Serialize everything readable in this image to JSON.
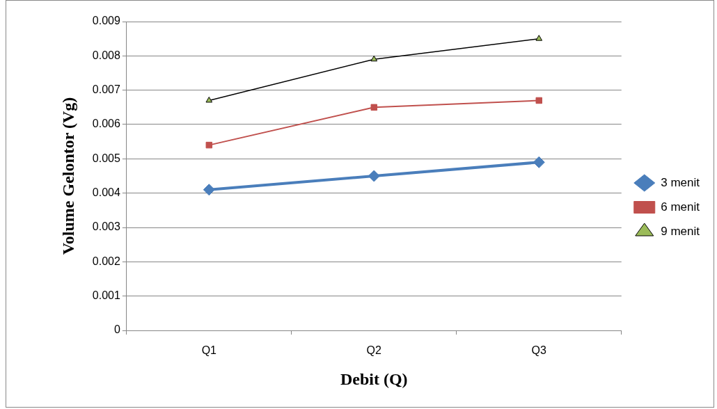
{
  "chart_data": {
    "type": "line",
    "xlabel": "Debit (Q)",
    "ylabel": "Volume Gelontor (Vg)",
    "categories": [
      "Q1",
      "Q2",
      "Q3"
    ],
    "series": [
      {
        "name": "3 menit",
        "color": "#4a7ebb",
        "values": [
          0.0041,
          0.0045,
          0.0049
        ],
        "marker": "diamond"
      },
      {
        "name": "6 menit",
        "color": "#c0504d",
        "values": [
          0.0054,
          0.0065,
          0.0067
        ],
        "marker": "square"
      },
      {
        "name": "9 menit",
        "color": "#000000",
        "colors": [
          "#9bbb59",
          "#9bbb59",
          "#9bbb59"
        ],
        "values": [
          0.0067,
          0.0079,
          0.0085
        ],
        "marker": "triangle"
      }
    ],
    "ylim": [
      0,
      0.009
    ],
    "yticks": [
      0,
      0.001,
      0.002,
      0.003,
      0.004,
      0.005,
      0.006,
      0.007,
      0.008,
      0.009
    ],
    "grid": "y",
    "legend": "right"
  }
}
